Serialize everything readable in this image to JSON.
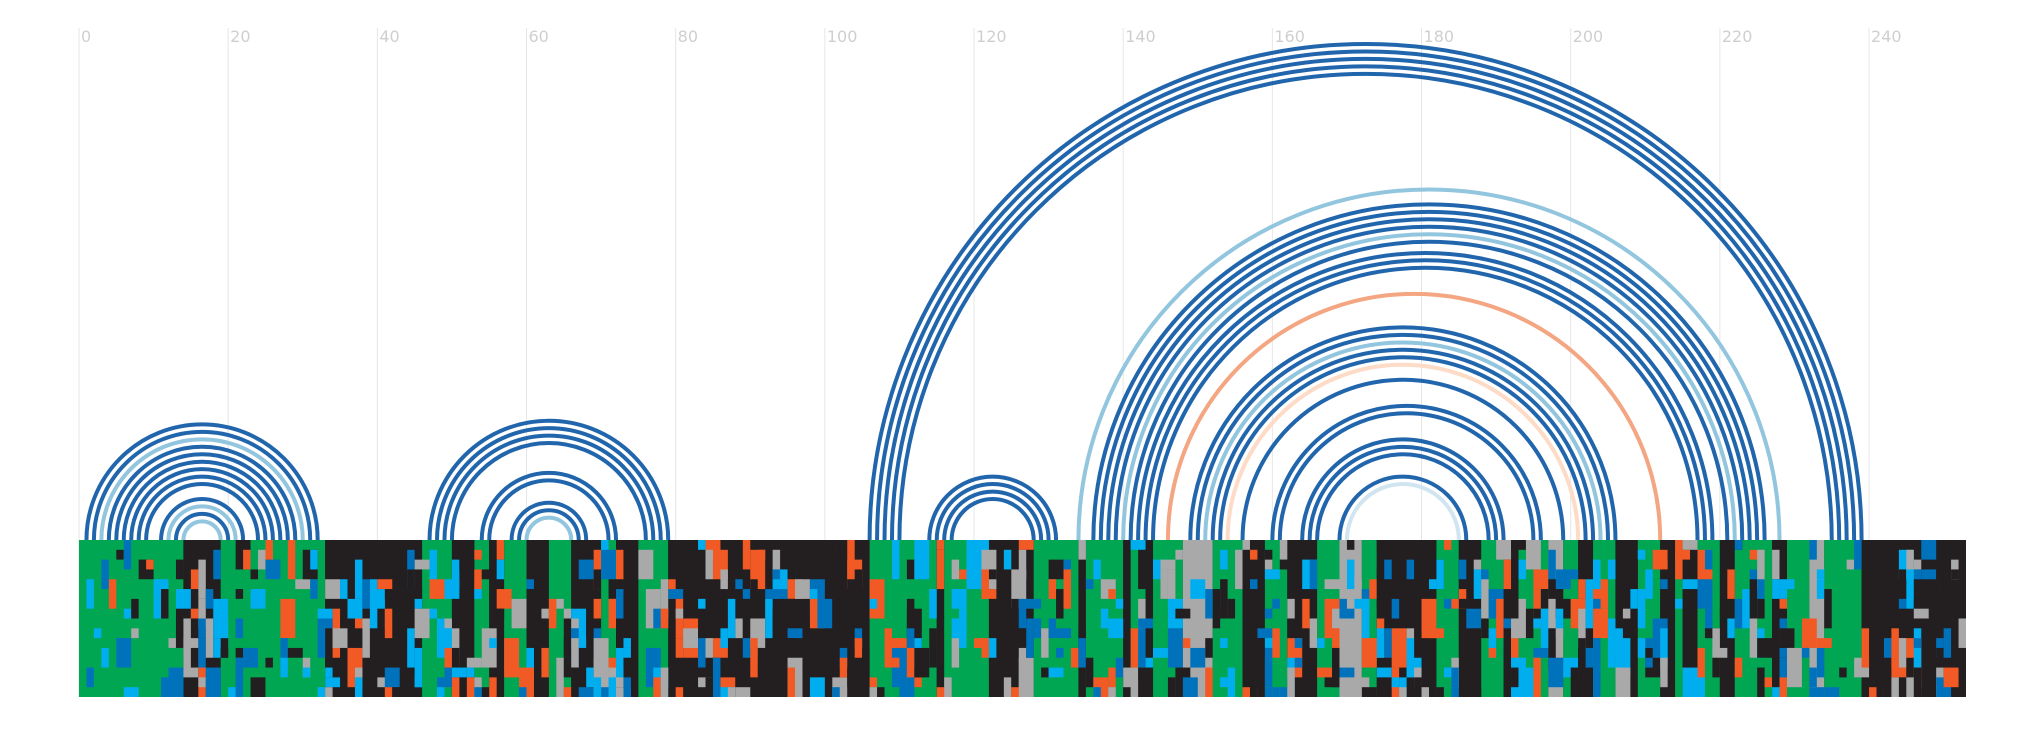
{
  "chart_data": {
    "type": "arc-diagram",
    "x_axis": {
      "range": [
        0,
        253
      ],
      "ticks": [
        0,
        20,
        40,
        60,
        80,
        100,
        120,
        140,
        160,
        180,
        200,
        220,
        240
      ],
      "tick_labels": [
        "0",
        "20",
        "40",
        "60",
        "80",
        "100",
        "120",
        "140",
        "160",
        "180",
        "200",
        "220",
        "240"
      ],
      "grid": true
    },
    "colors": {
      "strong_pair": "#2166ac",
      "weak_pair": "#92c5de",
      "noncanonical_pair": "#f4a582",
      "faint_noncanonical_pair": "#fddbc7",
      "faint_pair": "#d1e5f0",
      "track_background": "#231f20",
      "track_gray": "#a9a9a9",
      "track_green": "#00a651",
      "track_blue": "#0072bc",
      "track_cyan": "#00aeef",
      "track_orange": "#f15a24"
    },
    "arcs": [
      {
        "from": 1,
        "to": 32,
        "category": "strong"
      },
      {
        "from": 2,
        "to": 31,
        "category": "strong"
      },
      {
        "from": 3,
        "to": 30,
        "category": "weak"
      },
      {
        "from": 4,
        "to": 29,
        "category": "strong"
      },
      {
        "from": 5,
        "to": 28,
        "category": "strong"
      },
      {
        "from": 6,
        "to": 27,
        "category": "strong"
      },
      {
        "from": 7,
        "to": 26,
        "category": "strong"
      },
      {
        "from": 8,
        "to": 25,
        "category": "strong"
      },
      {
        "from": 9,
        "to": 24,
        "category": "strong"
      },
      {
        "from": 11,
        "to": 22,
        "category": "strong"
      },
      {
        "from": 12,
        "to": 21,
        "category": "weak"
      },
      {
        "from": 13,
        "to": 20,
        "category": "strong"
      },
      {
        "from": 14,
        "to": 19,
        "category": "weak"
      },
      {
        "from": 47,
        "to": 79,
        "category": "strong"
      },
      {
        "from": 48,
        "to": 78,
        "category": "strong"
      },
      {
        "from": 49,
        "to": 77,
        "category": "strong"
      },
      {
        "from": 50,
        "to": 76,
        "category": "strong"
      },
      {
        "from": 54,
        "to": 72,
        "category": "strong"
      },
      {
        "from": 55,
        "to": 71,
        "category": "strong"
      },
      {
        "from": 58,
        "to": 68,
        "category": "strong"
      },
      {
        "from": 59,
        "to": 67,
        "category": "strong"
      },
      {
        "from": 60,
        "to": 66,
        "category": "weak"
      },
      {
        "from": 106,
        "to": 239,
        "category": "strong"
      },
      {
        "from": 107,
        "to": 238,
        "category": "strong"
      },
      {
        "from": 108,
        "to": 237,
        "category": "strong"
      },
      {
        "from": 109,
        "to": 236,
        "category": "strong"
      },
      {
        "from": 110,
        "to": 235,
        "category": "strong"
      },
      {
        "from": 114,
        "to": 131,
        "category": "strong"
      },
      {
        "from": 115,
        "to": 130,
        "category": "strong"
      },
      {
        "from": 116,
        "to": 129,
        "category": "strong"
      },
      {
        "from": 117,
        "to": 128,
        "category": "strong"
      },
      {
        "from": 134,
        "to": 228,
        "category": "weak"
      },
      {
        "from": 136,
        "to": 226,
        "category": "strong"
      },
      {
        "from": 137,
        "to": 225,
        "category": "strong"
      },
      {
        "from": 138,
        "to": 224,
        "category": "strong"
      },
      {
        "from": 139,
        "to": 223,
        "category": "strong"
      },
      {
        "from": 140,
        "to": 222,
        "category": "weak"
      },
      {
        "from": 141,
        "to": 221,
        "category": "strong"
      },
      {
        "from": 142,
        "to": 219,
        "category": "strong"
      },
      {
        "from": 143,
        "to": 218,
        "category": "strong"
      },
      {
        "from": 144,
        "to": 217,
        "category": "strong"
      },
      {
        "from": 146,
        "to": 212,
        "category": "noncanonical"
      },
      {
        "from": 149,
        "to": 206,
        "category": "strong"
      },
      {
        "from": 150,
        "to": 205,
        "category": "strong"
      },
      {
        "from": 151,
        "to": 204,
        "category": "weak"
      },
      {
        "from": 152,
        "to": 203,
        "category": "strong"
      },
      {
        "from": 153,
        "to": 202,
        "category": "strong"
      },
      {
        "from": 154,
        "to": 201,
        "category": "faint_noncanonical"
      },
      {
        "from": 156,
        "to": 199,
        "category": "strong"
      },
      {
        "from": 160,
        "to": 196,
        "category": "strong"
      },
      {
        "from": 161,
        "to": 195,
        "category": "strong"
      },
      {
        "from": 164,
        "to": 191,
        "category": "strong"
      },
      {
        "from": 165,
        "to": 190,
        "category": "strong"
      },
      {
        "from": 166,
        "to": 189,
        "category": "strong"
      },
      {
        "from": 169,
        "to": 186,
        "category": "strong"
      },
      {
        "from": 170,
        "to": 185,
        "category": "faint"
      }
    ],
    "track": {
      "rows": 16,
      "segments": [
        [
          0,
          14,
          "green"
        ],
        [
          14,
          19,
          "black"
        ],
        [
          19,
          33,
          "green"
        ],
        [
          33,
          46,
          "black"
        ],
        [
          46,
          50,
          "green"
        ],
        [
          50,
          53,
          "black"
        ],
        [
          53,
          55,
          "green"
        ],
        [
          55,
          57,
          "black"
        ],
        [
          57,
          60,
          "green"
        ],
        [
          60,
          63,
          "black"
        ],
        [
          63,
          66,
          "green"
        ],
        [
          66,
          70,
          "black"
        ],
        [
          70,
          72,
          "green"
        ],
        [
          72,
          75,
          "black"
        ],
        [
          75,
          79,
          "green"
        ],
        [
          79,
          106,
          "black"
        ],
        [
          106,
          115,
          "green"
        ],
        [
          115,
          116,
          "black"
        ],
        [
          116,
          122,
          "green"
        ],
        [
          122,
          128,
          "black"
        ],
        [
          128,
          134,
          "green"
        ],
        [
          134,
          135,
          "black"
        ],
        [
          135,
          140,
          "green"
        ],
        [
          140,
          141,
          "black"
        ],
        [
          141,
          143,
          "green"
        ],
        [
          143,
          144,
          "black"
        ],
        [
          144,
          148,
          "green"
        ],
        [
          148,
          152,
          "gray"
        ],
        [
          152,
          156,
          "green"
        ],
        [
          156,
          159,
          "black"
        ],
        [
          159,
          162,
          "green"
        ],
        [
          162,
          166,
          "black"
        ],
        [
          166,
          169,
          "green"
        ],
        [
          169,
          172,
          "gray"
        ],
        [
          172,
          174,
          "green"
        ],
        [
          174,
          182,
          "black"
        ],
        [
          182,
          185,
          "green"
        ],
        [
          185,
          188,
          "black"
        ],
        [
          188,
          191,
          "green"
        ],
        [
          191,
          193,
          "black"
        ],
        [
          193,
          197,
          "green"
        ],
        [
          197,
          199,
          "gray"
        ],
        [
          199,
          201,
          "green"
        ],
        [
          201,
          203,
          "black"
        ],
        [
          203,
          206,
          "green"
        ],
        [
          206,
          209,
          "black"
        ],
        [
          209,
          212,
          "green"
        ],
        [
          212,
          214,
          "black"
        ],
        [
          214,
          215,
          "green"
        ],
        [
          215,
          217,
          "black"
        ],
        [
          217,
          220,
          "green"
        ],
        [
          220,
          222,
          "black"
        ],
        [
          222,
          227,
          "green"
        ],
        [
          227,
          229,
          "black"
        ],
        [
          229,
          232,
          "green"
        ],
        [
          232,
          234,
          "gray"
        ],
        [
          234,
          239,
          "green"
        ],
        [
          239,
          253,
          "black"
        ]
      ]
    }
  }
}
